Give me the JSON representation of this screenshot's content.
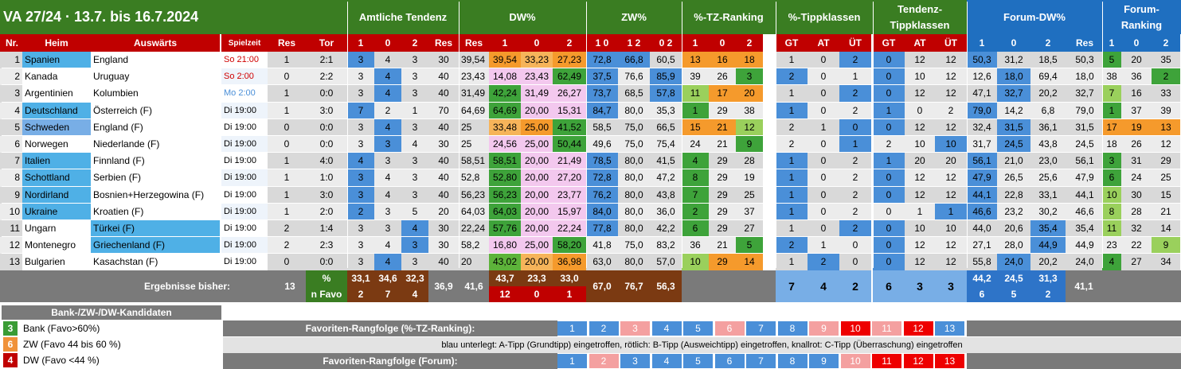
{
  "title": "VA 27/24 · 13.7. bis 16.7.2024",
  "group_headers": [
    "Amtliche Tendenz",
    "DW%",
    "ZW%",
    "%-TZ-Ranking",
    "%-Tippklassen",
    "Tendenz-\nTippklassen",
    "Forum-DW%",
    "Forum-\nRanking"
  ],
  "sub_headers": [
    "Nr.",
    "Heim",
    "Auswärts",
    "Spielzeit",
    "Res",
    "Tor",
    "1",
    "0",
    "2",
    "Res",
    "Res",
    "1",
    "0",
    "2",
    "1 0",
    "1 2",
    "0 2",
    "1",
    "0",
    "2",
    "GT",
    "AT",
    "ÜT",
    "GT",
    "AT",
    "ÜT",
    "1",
    "0",
    "2",
    "Res",
    "1",
    "0",
    "2"
  ],
  "rows": [
    [
      "1",
      "Spanien",
      "England",
      "So 21:00",
      "1",
      "2:1",
      "3",
      "4",
      "3",
      "30",
      "39,54",
      "39,54",
      "33,23",
      "27,23",
      "72,8",
      "66,8",
      "60,5",
      "13",
      "16",
      "18",
      "1",
      "0",
      "2",
      "0",
      "12",
      "12",
      "50,3",
      "31,2",
      "18,5",
      "50,3",
      "5",
      "20",
      "35"
    ],
    [
      "2",
      "Kanada",
      "Uruguay",
      "So 2:00",
      "0",
      "2:2",
      "3",
      "4",
      "3",
      "40",
      "23,43",
      "14,08",
      "23,43",
      "62,49",
      "37,5",
      "76,6",
      "85,9",
      "39",
      "26",
      "3",
      "2",
      "0",
      "1",
      "0",
      "10",
      "12",
      "12,6",
      "18,0",
      "69,4",
      "18,0",
      "38",
      "36",
      "2"
    ],
    [
      "3",
      "Argentinien",
      "Kolumbien",
      "Mo 2:00",
      "1",
      "0:0",
      "3",
      "4",
      "3",
      "40",
      "31,49",
      "42,24",
      "31,49",
      "26,27",
      "73,7",
      "68,5",
      "57,8",
      "11",
      "17",
      "20",
      "1",
      "0",
      "2",
      "0",
      "12",
      "12",
      "47,1",
      "32,7",
      "20,2",
      "32,7",
      "7",
      "16",
      "33"
    ],
    [
      "4",
      "Deutschland",
      "Österreich (F)",
      "Di 19:00",
      "1",
      "3:0",
      "7",
      "2",
      "1",
      "70",
      "64,69",
      "64,69",
      "20,00",
      "15,31",
      "84,7",
      "80,0",
      "35,3",
      "1",
      "29",
      "38",
      "1",
      "0",
      "2",
      "1",
      "0",
      "2",
      "79,0",
      "14,2",
      "6,8",
      "79,0",
      "1",
      "37",
      "39"
    ],
    [
      "5",
      "Schweden",
      "England (F)",
      "Di 19:00",
      "0",
      "0:0",
      "3",
      "4",
      "3",
      "40",
      "25",
      "33,48",
      "25,00",
      "41,52",
      "58,5",
      "75,0",
      "66,5",
      "15",
      "21",
      "12",
      "2",
      "1",
      "0",
      "0",
      "12",
      "12",
      "32,4",
      "31,5",
      "36,1",
      "31,5",
      "17",
      "19",
      "13"
    ],
    [
      "6",
      "Norwegen",
      "Niederlande (F)",
      "Di 19:00",
      "0",
      "0:0",
      "3",
      "3",
      "4",
      "30",
      "25",
      "24,56",
      "25,00",
      "50,44",
      "49,6",
      "75,0",
      "75,4",
      "24",
      "21",
      "9",
      "2",
      "0",
      "1",
      "2",
      "10",
      "10",
      "31,7",
      "24,5",
      "43,8",
      "24,5",
      "18",
      "26",
      "12"
    ],
    [
      "7",
      "Italien",
      "Finnland (F)",
      "Di 19:00",
      "1",
      "4:0",
      "4",
      "3",
      "3",
      "40",
      "58,51",
      "58,51",
      "20,00",
      "21,49",
      "78,5",
      "80,0",
      "41,5",
      "4",
      "29",
      "28",
      "1",
      "0",
      "2",
      "1",
      "20",
      "20",
      "56,1",
      "21,0",
      "23,0",
      "56,1",
      "3",
      "31",
      "29"
    ],
    [
      "8",
      "Schottland",
      "Serbien (F)",
      "Di 19:00",
      "1",
      "1:0",
      "3",
      "4",
      "3",
      "40",
      "52,8",
      "52,80",
      "20,00",
      "27,20",
      "72,8",
      "80,0",
      "47,2",
      "8",
      "29",
      "19",
      "1",
      "0",
      "2",
      "0",
      "12",
      "12",
      "47,9",
      "26,5",
      "25,6",
      "47,9",
      "6",
      "24",
      "25"
    ],
    [
      "9",
      "Nordirland",
      "Bosnien+Herzegowina (F)",
      "Di 19:00",
      "1",
      "3:0",
      "3",
      "4",
      "3",
      "40",
      "56,23",
      "56,23",
      "20,00",
      "23,77",
      "76,2",
      "80,0",
      "43,8",
      "7",
      "29",
      "25",
      "1",
      "0",
      "2",
      "0",
      "12",
      "12",
      "44,1",
      "22,8",
      "33,1",
      "44,1",
      "10",
      "30",
      "15"
    ],
    [
      "10",
      "Ukraine",
      "Kroatien (F)",
      "Di 19:00",
      "1",
      "2:0",
      "2",
      "3",
      "5",
      "20",
      "64,03",
      "64,03",
      "20,00",
      "15,97",
      "84,0",
      "80,0",
      "36,0",
      "2",
      "29",
      "37",
      "1",
      "0",
      "2",
      "0",
      "1",
      "1",
      "46,6",
      "23,2",
      "30,2",
      "46,6",
      "8",
      "28",
      "21"
    ],
    [
      "11",
      "Ungarn",
      "Türkei (F)",
      "Di 19:00",
      "2",
      "1:4",
      "3",
      "3",
      "4",
      "30",
      "22,24",
      "57,76",
      "20,00",
      "22,24",
      "77,8",
      "80,0",
      "42,2",
      "6",
      "29",
      "27",
      "1",
      "0",
      "2",
      "0",
      "10",
      "10",
      "44,0",
      "20,6",
      "35,4",
      "35,4",
      "11",
      "32",
      "14"
    ],
    [
      "12",
      "Montenegro",
      "Griechenland (F)",
      "Di 19:00",
      "2",
      "2:3",
      "3",
      "4",
      "3",
      "30",
      "58,2",
      "16,80",
      "25,00",
      "58,20",
      "41,8",
      "75,0",
      "83,2",
      "36",
      "21",
      "5",
      "2",
      "1",
      "0",
      "0",
      "12",
      "12",
      "27,1",
      "28,0",
      "44,9",
      "44,9",
      "23",
      "22",
      "9"
    ],
    [
      "13",
      "Bulgarien",
      "Kasachstan (F)",
      "Di 19:00",
      "0",
      "0:0",
      "3",
      "4",
      "3",
      "40",
      "20",
      "43,02",
      "20,00",
      "36,98",
      "63,0",
      "80,0",
      "57,0",
      "10",
      "29",
      "14",
      "1",
      "2",
      "0",
      "0",
      "12",
      "12",
      "55,8",
      "24,0",
      "20,2",
      "24,0",
      "4",
      "27",
      "34"
    ]
  ],
  "summary": {
    "label": "Ergebnisse bisher:",
    "count": "13",
    "pct_label": "%",
    "nfavo_label": "n Favo",
    "at_pct": [
      "33,1",
      "34,6",
      "32,3"
    ],
    "at_nfavo": [
      "2",
      "7",
      "4"
    ],
    "at_res": "36,9",
    "dw_res": "41,6",
    "dw_pct": [
      "43,7",
      "23,3",
      "33,0"
    ],
    "dw_nfavo": [
      "12",
      "0",
      "1"
    ],
    "zw": [
      "67,0",
      "76,7",
      "56,3"
    ],
    "tk": [
      "7",
      "4",
      "2"
    ],
    "tt": [
      "6",
      "3",
      "3"
    ],
    "f_pct": [
      "44,2",
      "24,5",
      "31,3"
    ],
    "f_nfavo": [
      "6",
      "5",
      "2"
    ],
    "f_res": "41,1"
  },
  "legend": {
    "title": "Bank-/ZW-/DW-Kandidaten",
    "items": [
      {
        "num": "3",
        "label": "Bank (Favo>60%)",
        "color": "#3a9c35"
      },
      {
        "num": "6",
        "label": "ZW (Favo 44 bis 60 %)",
        "color": "#f0923a"
      },
      {
        "num": "4",
        "label": "DW (Favo <44 %)",
        "color": "#c00000"
      }
    ]
  },
  "favorites_tz": {
    "label": "Favoriten-Rangfolge (%-TZ-Ranking):",
    "values": [
      "1",
      "2",
      "3",
      "4",
      "5",
      "6",
      "7",
      "8",
      "9",
      "10",
      "11",
      "12",
      "13"
    ]
  },
  "note": "blau unterlegt: A-Tipp (Grundtipp) eingetroffen, rötlich: B-Tipp (Ausweichtipp) eingetroffen, knallrot: C-Tipp (Überraschung) eingetroffen",
  "favorites_forum": {
    "label": "Favoriten-Rangfolge (Forum):",
    "values": [
      "1",
      "2",
      "3",
      "4",
      "5",
      "6",
      "7",
      "8",
      "9",
      "10",
      "11",
      "12",
      "13"
    ]
  },
  "colors": {
    "header_green": "#3a7d22",
    "header_blue": "#1f6fc0",
    "header_red": "#c00000",
    "tip_a": "#4a8fd8",
    "tip_b": "#f08080",
    "tip_c": "#ee0000",
    "row_gray": "#d9d9d9",
    "pink": "#f2c4ee",
    "bank_green": "#3a9c35",
    "zw_orange": "#f0923a",
    "dw_yellowgreen": "#e6a21c"
  }
}
